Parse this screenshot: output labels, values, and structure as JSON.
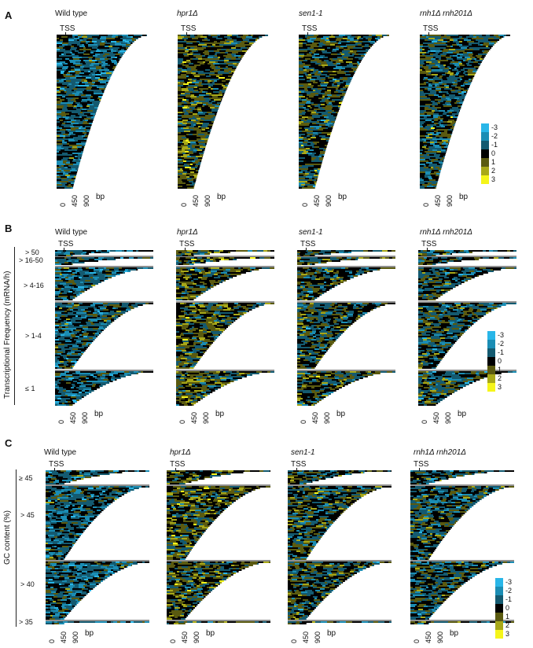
{
  "panels": [
    {
      "letter": "A",
      "titles": [
        "Wild type",
        "hpr1Δ",
        "sen1-1",
        "rnh1Δ rnh201Δ"
      ],
      "tss": "TSS",
      "ticks": [
        "0",
        "450",
        "900"
      ],
      "unit": "bp",
      "groups": []
    },
    {
      "letter": "B",
      "titles": [
        "Wild type",
        "hpr1Δ",
        "sen1-1",
        "rnh1Δ rnh201Δ"
      ],
      "tss": "TSS",
      "ticks": [
        "0",
        "450",
        "900"
      ],
      "unit": "bp",
      "ylabel": "Transcriptional Frequency (mRNA/h)",
      "groups": [
        "> 50",
        "> 16-50",
        "> 4-16",
        "> 1-4",
        "≤ 1"
      ]
    },
    {
      "letter": "C",
      "titles": [
        "Wild type",
        "hpr1Δ",
        "sen1-1",
        "rnh1Δ rnh201Δ"
      ],
      "tss": "TSS",
      "ticks": [
        "0",
        "450",
        "900"
      ],
      "unit": "bp",
      "ylabel": "GC content (%)",
      "groups": [
        "≥ 45",
        "> 45",
        "> 40",
        "> 35"
      ]
    }
  ],
  "legend": [
    {
      "label": "-3",
      "color": "#29b6e8"
    },
    {
      "label": "-2",
      "color": "#1b8db4"
    },
    {
      "label": "-1",
      "color": "#145a70"
    },
    {
      "label": "0",
      "color": "#000000"
    },
    {
      "label": "1",
      "color": "#5a5a10"
    },
    {
      "label": "2",
      "color": "#a8a818"
    },
    {
      "label": "3",
      "color": "#f5f51a"
    }
  ]
}
